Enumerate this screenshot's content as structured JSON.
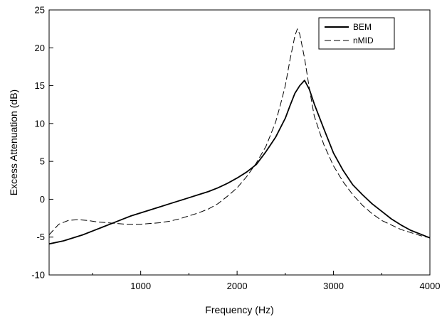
{
  "chart_data": {
    "type": "line",
    "title": "",
    "xlabel": "Frequency (Hz)",
    "ylabel": "Excess Attenuation (dB)",
    "xlim": [
      50,
      4000
    ],
    "ylim": [
      -10,
      25
    ],
    "xticks": [
      1000,
      2000,
      3000,
      4000
    ],
    "yticks": [
      -10,
      -5,
      0,
      5,
      10,
      15,
      20,
      25
    ],
    "grid": false,
    "legend_position": "top-right",
    "series": [
      {
        "name": "BEM",
        "style": "solid",
        "color": "#000000",
        "x": [
          50,
          200,
          300,
          400,
          500,
          600,
          700,
          800,
          900,
          1000,
          1100,
          1200,
          1300,
          1400,
          1500,
          1600,
          1700,
          1800,
          1900,
          2000,
          2100,
          2200,
          2300,
          2400,
          2500,
          2550,
          2600,
          2650,
          2700,
          2750,
          2800,
          2900,
          3000,
          3100,
          3200,
          3300,
          3400,
          3500,
          3600,
          3700,
          3800,
          3900,
          4000
        ],
        "y": [
          -5.9,
          -5.5,
          -5.1,
          -4.7,
          -4.2,
          -3.7,
          -3.2,
          -2.7,
          -2.2,
          -1.8,
          -1.4,
          -1.0,
          -0.6,
          -0.2,
          0.2,
          0.6,
          1.0,
          1.5,
          2.1,
          2.8,
          3.6,
          4.6,
          6.3,
          8.2,
          10.7,
          12.4,
          14.0,
          15.0,
          15.7,
          14.5,
          12.6,
          9.3,
          6.1,
          3.8,
          1.9,
          0.6,
          -0.6,
          -1.6,
          -2.6,
          -3.4,
          -4.1,
          -4.6,
          -5.1
        ]
      },
      {
        "name": "nMID",
        "style": "dashed",
        "color": "#000000",
        "x": [
          50,
          150,
          250,
          350,
          450,
          550,
          650,
          750,
          850,
          1000,
          1100,
          1200,
          1300,
          1400,
          1500,
          1600,
          1700,
          1800,
          1900,
          2000,
          2100,
          2200,
          2300,
          2400,
          2450,
          2500,
          2550,
          2600,
          2625,
          2650,
          2700,
          2750,
          2800,
          2900,
          3000,
          3100,
          3200,
          3300,
          3400,
          3500,
          3600,
          3700,
          3800,
          3900,
          4000
        ],
        "y": [
          -4.7,
          -3.3,
          -2.8,
          -2.7,
          -2.8,
          -3.0,
          -3.1,
          -3.2,
          -3.3,
          -3.3,
          -3.2,
          -3.1,
          -2.9,
          -2.6,
          -2.2,
          -1.8,
          -1.3,
          -0.6,
          0.4,
          1.5,
          3.0,
          4.8,
          7.0,
          10.2,
          12.5,
          15.0,
          18.5,
          21.6,
          22.5,
          21.8,
          18.6,
          14.6,
          11.0,
          7.2,
          4.4,
          2.3,
          0.6,
          -0.8,
          -1.9,
          -2.8,
          -3.4,
          -4.0,
          -4.4,
          -4.8,
          -5.1
        ]
      }
    ]
  }
}
